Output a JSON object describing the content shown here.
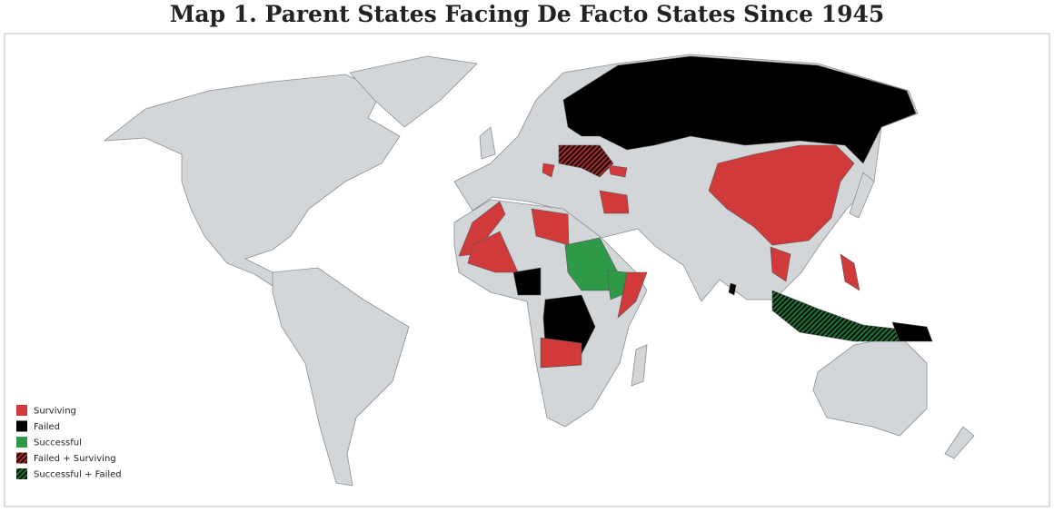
{
  "title": "Map 1. Parent States Facing De Facto States Since 1945",
  "legend": [
    {
      "label": "Surviving",
      "color": "#d13a3a"
    },
    {
      "label": "Failed",
      "color": "#000000"
    },
    {
      "label": "Successful",
      "color": "#2e9a48"
    },
    {
      "label": "Failed + Surviving",
      "color": "#9e2a2a",
      "hatch_color": "#000000"
    },
    {
      "label": "Successful + Failed",
      "color": "#1f6e34",
      "hatch_color": "#000000"
    }
  ]
}
